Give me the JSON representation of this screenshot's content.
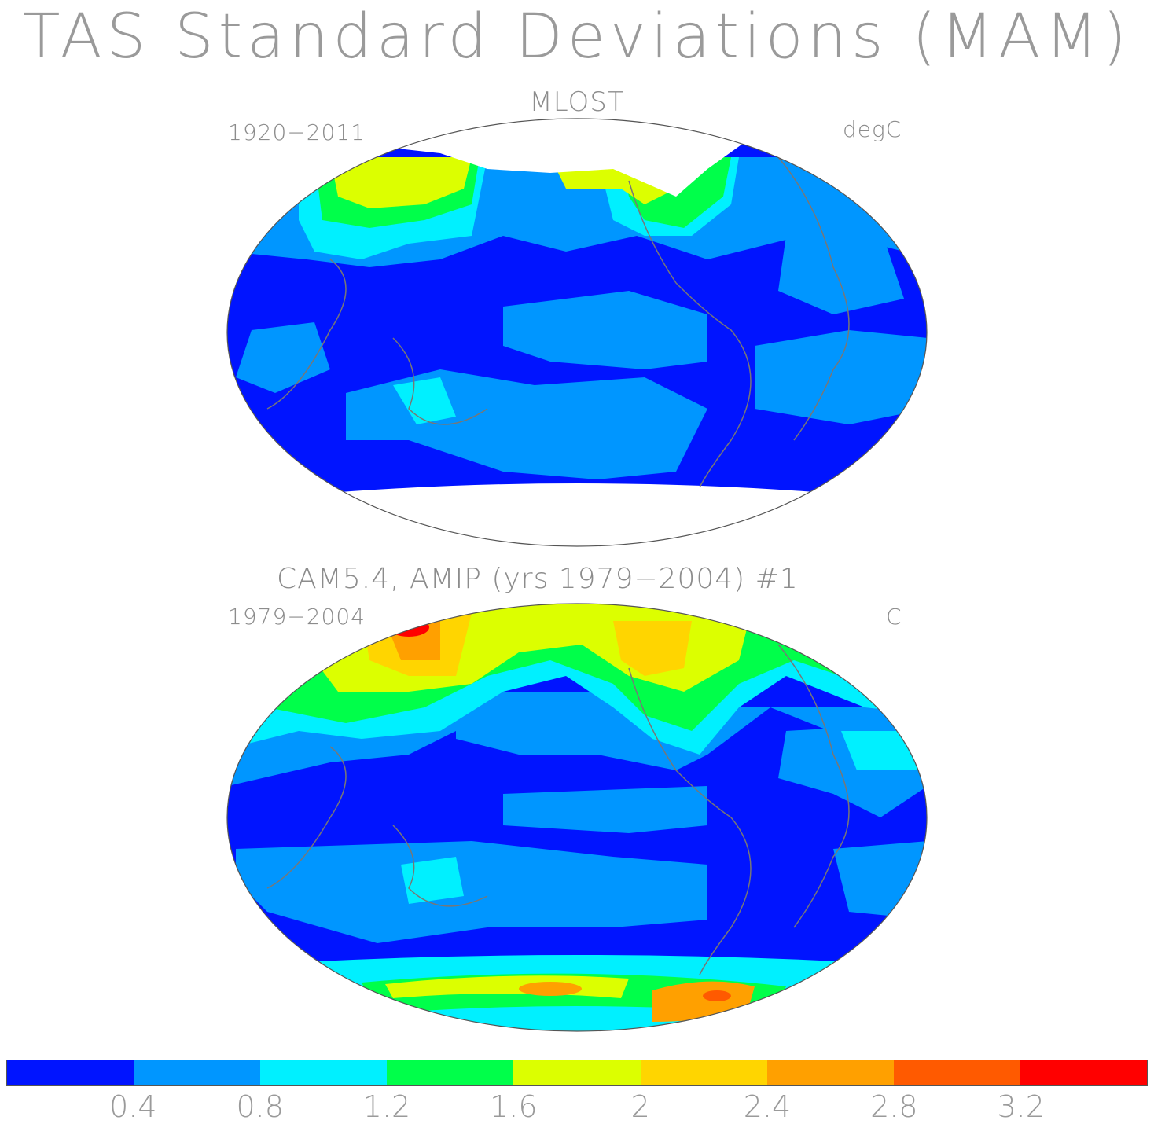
{
  "title": "TAS Standard Deviations (MAM)",
  "panels": [
    {
      "title": "MLOST",
      "left_label": "1920−2011",
      "right_label": "degC"
    },
    {
      "title": "CAM5.4, AMIP (yrs 1979−2004)      #1",
      "left_label": "1979−2004",
      "right_label": "C"
    }
  ],
  "colorbar": {
    "colors": [
      "#0014ff",
      "#0096ff",
      "#00f0ff",
      "#00ff4a",
      "#dcff00",
      "#ffd500",
      "#ffa000",
      "#ff5a00",
      "#ff0000"
    ],
    "tick_labels": [
      "0.4",
      "0.8",
      "1.2",
      "1.6",
      "2",
      "2.4",
      "2.8",
      "3.2"
    ]
  }
}
